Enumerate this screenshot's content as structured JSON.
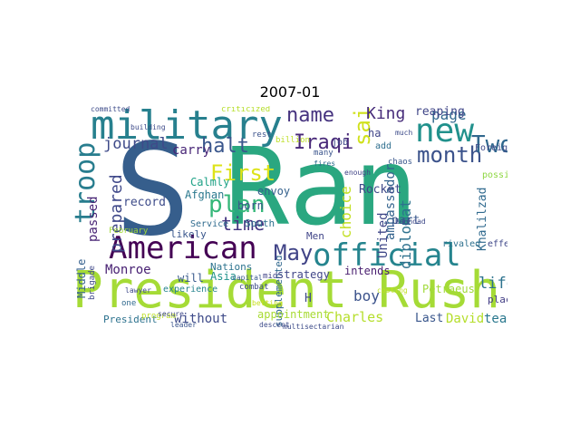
{
  "figure": {
    "title": "2007-01"
  },
  "word_cloud": {
    "words": [
      {
        "text": "Ran",
        "color": "#2aa780"
      },
      {
        "text": "S",
        "color": "#365e8c"
      },
      {
        "text": "President Rush",
        "color": "#a5db36"
      },
      {
        "text": "military",
        "color": "#27808e"
      },
      {
        "text": "American",
        "color": "#440154"
      },
      {
        "text": "official",
        "color": "#25848e"
      },
      {
        "text": "new",
        "color": "#21918c"
      },
      {
        "text": "month",
        "color": "#3b528b"
      },
      {
        "text": "Two",
        "color": "#31688e"
      },
      {
        "text": "said",
        "color": "#d0e11c"
      },
      {
        "text": "name",
        "color": "#46337f"
      },
      {
        "text": "First",
        "color": "#dde318"
      },
      {
        "text": "plan",
        "color": "#35b779"
      },
      {
        "text": "troop",
        "color": "#287d8e"
      },
      {
        "text": "May",
        "color": "#414487"
      },
      {
        "text": "halt",
        "color": "#39568c"
      },
      {
        "text": "Iraqi",
        "color": "#482878"
      },
      {
        "text": "time",
        "color": "#453581"
      },
      {
        "text": "King",
        "color": "#472c7a"
      },
      {
        "text": "page",
        "color": "#31688e"
      },
      {
        "text": "life",
        "color": "#2c728e"
      },
      {
        "text": "journal",
        "color": "#3e4a89"
      },
      {
        "text": "prepared",
        "color": "#3f4889"
      },
      {
        "text": "carry",
        "color": "#482677"
      },
      {
        "text": "Calmly",
        "color": "#1fa287"
      },
      {
        "text": "Afghan",
        "color": "#2a788e"
      },
      {
        "text": "record",
        "color": "#3e4c8a"
      },
      {
        "text": "passed",
        "color": "#482475"
      },
      {
        "text": "Monroe",
        "color": "#482173"
      },
      {
        "text": "Charles",
        "color": "#b5de2b"
      },
      {
        "text": "boy",
        "color": "#3b528b"
      },
      {
        "text": "choice",
        "color": "#c2df23"
      },
      {
        "text": "ambassador",
        "color": "#33638d"
      },
      {
        "text": "diplomat",
        "color": "#2d718e"
      },
      {
        "text": "Khalilzad",
        "color": "#306a8e"
      },
      {
        "text": "reaping",
        "color": "#404688"
      },
      {
        "text": "journal",
        "color": "#3e4a89"
      },
      {
        "text": "ha",
        "color": "#404588"
      },
      {
        "text": "part",
        "color": "#38588c"
      },
      {
        "text": "Rocket",
        "color": "#3e4989"
      },
      {
        "text": "United",
        "color": "#3f4788"
      },
      {
        "text": "possibly",
        "color": "#8fd744"
      },
      {
        "text": "intends",
        "color": "#481d6f"
      },
      {
        "text": "strategy",
        "color": "#404688"
      },
      {
        "text": "David",
        "color": "#b5de2b"
      },
      {
        "text": "team",
        "color": "#2a788e"
      },
      {
        "text": "Petraeus",
        "color": "#a0da39"
      },
      {
        "text": "Last",
        "color": "#39568c"
      },
      {
        "text": "appointment",
        "color": "#a8db34"
      },
      {
        "text": "without",
        "color": "#3e4a89"
      },
      {
        "text": "Middle",
        "color": "#34608d"
      },
      {
        "text": "President",
        "color": "#2c728e"
      },
      {
        "text": "will",
        "color": "#38598c"
      },
      {
        "text": "Nations",
        "color": "#2c738e"
      },
      {
        "text": "Asia",
        "color": "#20928c"
      },
      {
        "text": "born",
        "color": "#3b528b"
      },
      {
        "text": "envoy",
        "color": "#34618d"
      },
      {
        "text": "South",
        "color": "#2d708e"
      },
      {
        "text": "Service",
        "color": "#2f6b8e"
      },
      {
        "text": "Men",
        "color": "#404588"
      },
      {
        "text": "experience",
        "color": "#25838e"
      },
      {
        "text": "likely",
        "color": "#39568c"
      },
      {
        "text": "effect",
        "color": "#3f4889"
      },
      {
        "text": "place",
        "color": "#433e85"
      },
      {
        "text": "Foreign",
        "color": "#3e4a89"
      },
      {
        "text": "job",
        "color": "#3e4989"
      },
      {
        "text": "add",
        "color": "#2e6e8e"
      },
      {
        "text": "rivaled",
        "color": "#2d708e"
      },
      {
        "text": "combat",
        "color": "#3e4c8a"
      },
      {
        "text": "H",
        "color": "#3e4a89"
      },
      {
        "text": "one",
        "color": "#30698e"
      },
      {
        "text": "program",
        "color": "#bddf26"
      },
      {
        "text": "February",
        "color": "#a2da37"
      },
      {
        "text": "brigade",
        "color": "#3f4889"
      },
      {
        "text": "supplemented",
        "color": "#31688e"
      },
      {
        "text": "many",
        "color": "#3a548c"
      },
      {
        "text": "fires",
        "color": "#2f6c8e"
      },
      {
        "text": "chaos",
        "color": "#39568c"
      },
      {
        "text": "billion",
        "color": "#bddf26"
      },
      {
        "text": "rest",
        "color": "#3b528b"
      },
      {
        "text": "criticized",
        "color": "#b5de2b"
      },
      {
        "text": "committed",
        "color": "#3e4c8a"
      },
      {
        "text": "lawyer",
        "color": "#3e4989"
      },
      {
        "text": "leader",
        "color": "#3a548c"
      },
      {
        "text": "mid",
        "color": "#414487"
      },
      {
        "text": "multisectarian",
        "color": "#3e4c8a"
      },
      {
        "text": "costing",
        "color": "#c0df25"
      },
      {
        "text": "Baghdad",
        "color": "#3e4989"
      },
      {
        "text": "capital",
        "color": "#37598c"
      },
      {
        "text": "secure",
        "color": "#3f4889"
      },
      {
        "text": "much",
        "color": "#3e4c8a"
      },
      {
        "text": "enough",
        "color": "#414487"
      },
      {
        "text": "year",
        "color": "#443983"
      },
      {
        "text": "descent",
        "color": "#3e4c8a"
      },
      {
        "text": "building",
        "color": "#3e4a89"
      },
      {
        "text": "betting",
        "color": "#c8e020"
      }
    ]
  }
}
